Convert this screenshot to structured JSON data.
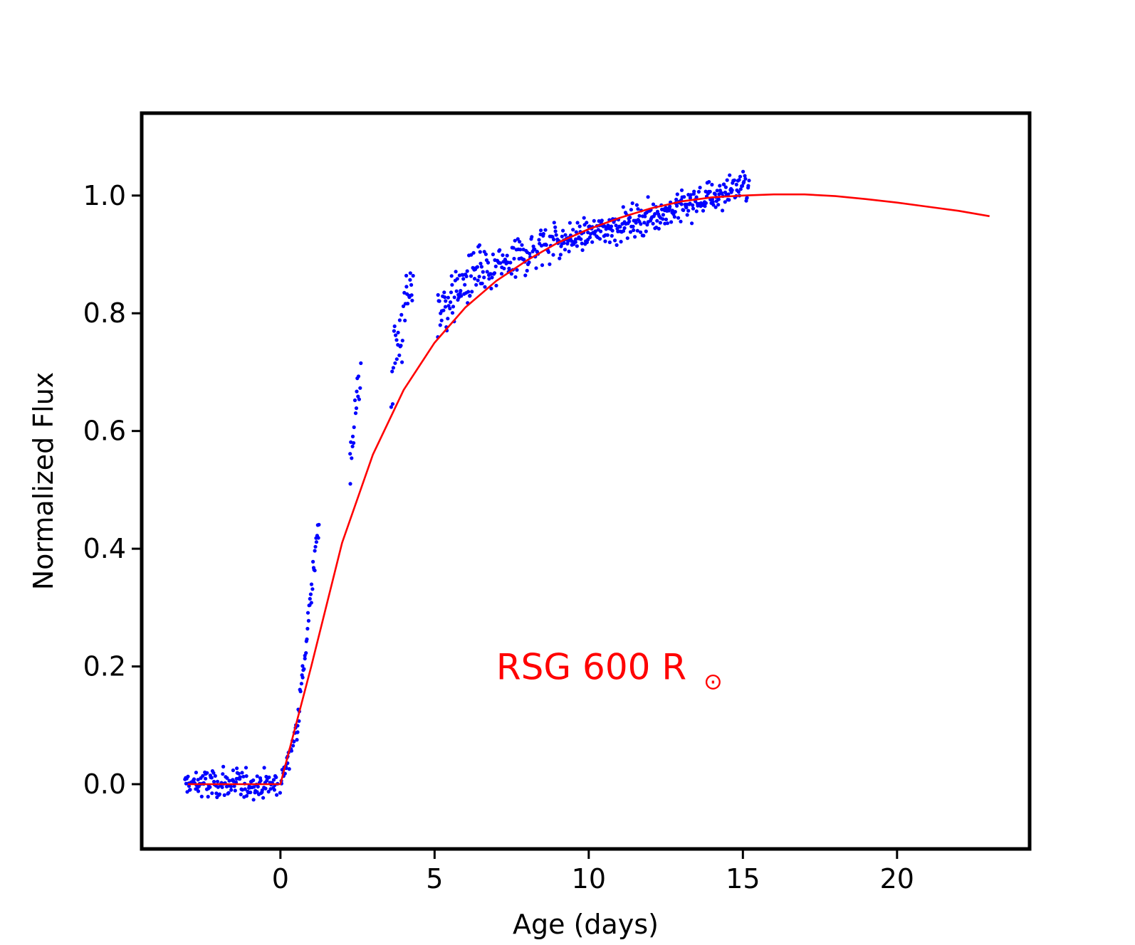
{
  "chart_data": {
    "type": "scatter",
    "title": "",
    "xlabel": "Age (days)",
    "ylabel": "Normalized Flux",
    "xlim": [
      -4.5,
      24.3
    ],
    "ylim": [
      -0.11,
      1.14
    ],
    "xticks": [
      0,
      5,
      10,
      15,
      20
    ],
    "xtick_labels": [
      "0",
      "5",
      "10",
      "15",
      "20"
    ],
    "yticks": [
      0.0,
      0.2,
      0.4,
      0.6,
      0.8,
      1.0
    ],
    "ytick_labels": [
      "0.0",
      "0.2",
      "0.4",
      "0.6",
      "0.8",
      "1.0"
    ],
    "grid": false,
    "legend": "none",
    "annotation": {
      "text": "RSG 600 R",
      "symbol": "⊙",
      "color": "#ff0000",
      "x": 7.0,
      "y": 0.2
    },
    "model_curve": {
      "color": "#ff0000",
      "x": [
        -3.0,
        -1.0,
        0.0,
        1.0,
        2.0,
        3.0,
        4.0,
        5.0,
        6.0,
        7.0,
        8.0,
        9.0,
        10.0,
        11.0,
        12.0,
        13.0,
        14.0,
        15.0,
        16.0,
        17.0,
        18.0,
        19.0,
        20.0,
        21.0,
        22.0,
        23.0
      ],
      "y": [
        0.0,
        0.0,
        0.0,
        0.2,
        0.41,
        0.56,
        0.67,
        0.75,
        0.81,
        0.855,
        0.89,
        0.92,
        0.943,
        0.962,
        0.978,
        0.99,
        0.997,
        1.0,
        1.002,
        1.002,
        0.999,
        0.994,
        0.988,
        0.981,
        0.974,
        0.965
      ]
    },
    "scatter_series": {
      "color": "#0000ff",
      "segments": [
        {
          "x_start": -3.1,
          "x_end": -0.1,
          "count": 150,
          "base": [
            0.0,
            0.0
          ],
          "noise": 0.018
        },
        {
          "x_start": 0.0,
          "x_end": 0.55,
          "count": 28,
          "base": [
            0.0,
            0.1
          ],
          "noise": 0.012
        },
        {
          "x_start": 0.55,
          "x_end": 1.25,
          "count": 40,
          "base": [
            0.1,
            0.45
          ],
          "noise": 0.02
        },
        {
          "x_start": 2.25,
          "x_end": 2.6,
          "count": 18,
          "base": [
            0.55,
            0.7
          ],
          "noise": 0.035
        },
        {
          "x_start": 3.6,
          "x_end": 4.3,
          "count": 35,
          "base": [
            0.7,
            0.86
          ],
          "noise": 0.05
        },
        {
          "x_start": 5.1,
          "x_end": 6.5,
          "count": 70,
          "base": [
            0.8,
            0.88
          ],
          "noise": 0.035
        },
        {
          "x_start": 6.5,
          "x_end": 9.0,
          "count": 110,
          "base": [
            0.86,
            0.93
          ],
          "noise": 0.025
        },
        {
          "x_start": 9.0,
          "x_end": 13.0,
          "count": 200,
          "base": [
            0.92,
            0.98
          ],
          "noise": 0.018
        },
        {
          "x_start": 13.0,
          "x_end": 15.2,
          "count": 110,
          "base": [
            0.98,
            1.02
          ],
          "noise": 0.02
        }
      ]
    }
  }
}
